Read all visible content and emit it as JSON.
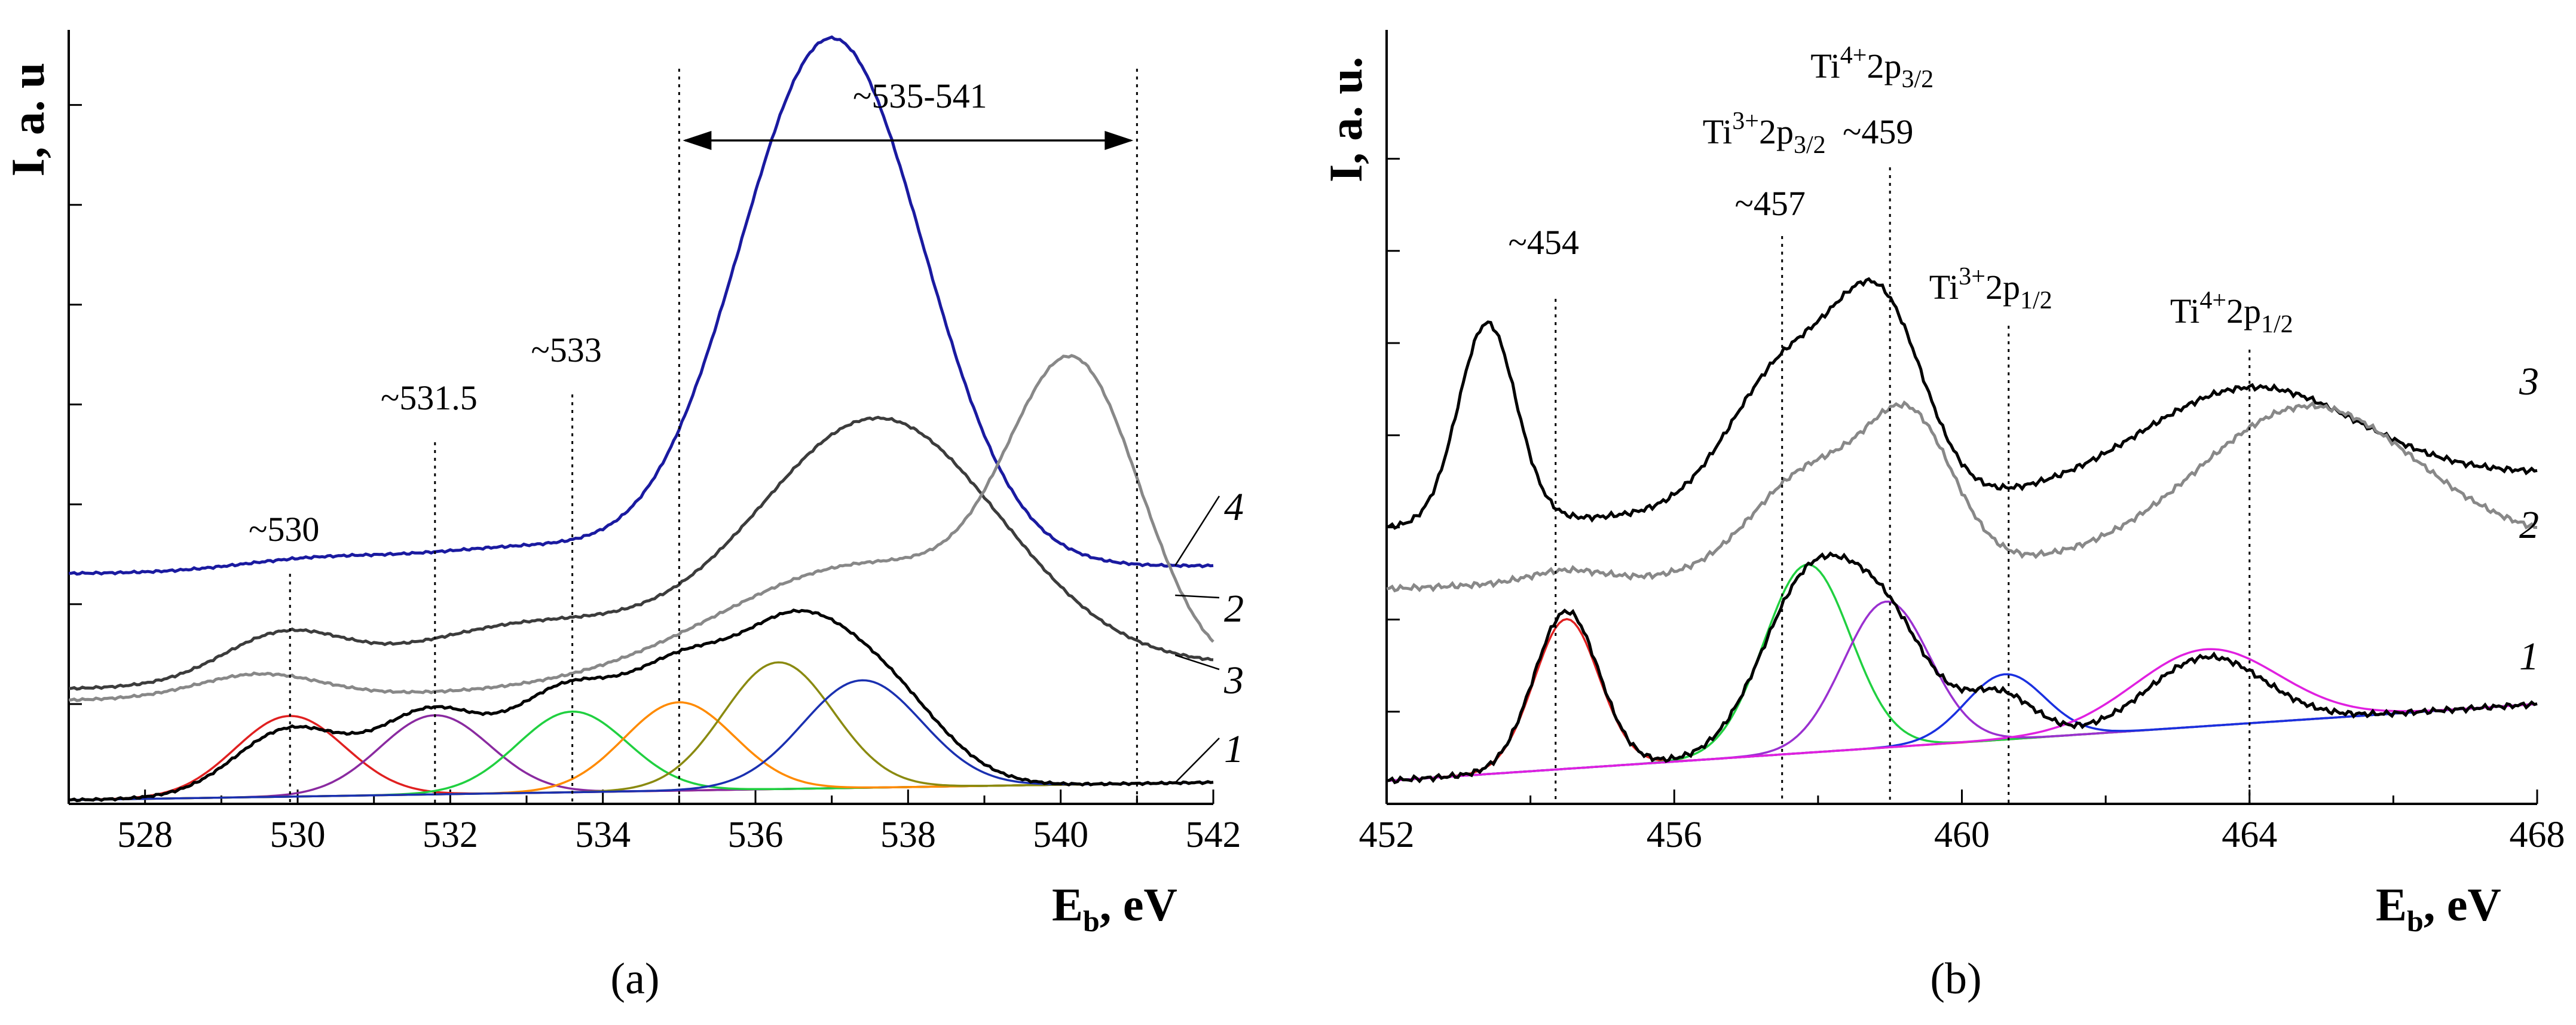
{
  "chart_data": [
    {
      "id": "a",
      "type": "line",
      "panel_label": "(a)",
      "xlabel_main": "E",
      "xlabel_sub": "b",
      "xlabel_rest": ", eV",
      "ylabel": "I, a. u",
      "xlim": [
        527,
        542
      ],
      "ylim": [
        0,
        1
      ],
      "x_ticks": [
        528,
        530,
        532,
        534,
        536,
        538,
        540,
        542
      ],
      "x_tick_labels": [
        "528",
        "530",
        "532",
        "534",
        "536",
        "538",
        "540",
        "542"
      ],
      "y_minor_ticks": [
        0.13,
        0.26,
        0.39,
        0.52,
        0.65,
        0.78,
        0.91
      ],
      "series": [
        {
          "name": "1",
          "color": "#000000",
          "baseline": [
            0.005,
            0.028
          ],
          "peaks": [
            [
              529.9,
              0.087,
              0.72
            ],
            [
              531.75,
              0.105,
              0.7
            ],
            [
              533.5,
              0.124,
              0.7
            ],
            [
              535.0,
              0.143,
              0.7
            ],
            [
              536.4,
              0.168,
              0.72
            ],
            [
              537.6,
              0.13,
              0.8
            ]
          ]
        },
        {
          "name": "4",
          "color": "#1a1aa0",
          "baseline": [
            0.3,
            0.31
          ],
          "peaks": [
            [
              530.2,
              0.015,
              1.0
            ],
            [
              533.0,
              0.03,
              1.4
            ],
            [
              537.0,
              0.69,
              1.2
            ]
          ]
        },
        {
          "name": "3",
          "color": "#3c3c3c",
          "baseline": [
            0.15,
            0.18
          ],
          "peaks": [
            [
              529.8,
              0.06,
              0.8
            ],
            [
              533.0,
              0.07,
              1.6
            ],
            [
              537.6,
              0.33,
              1.6
            ]
          ]
        },
        {
          "name": "2",
          "color": "#888888",
          "baseline": [
            0.135,
            0.16
          ],
          "peaks": [
            [
              529.5,
              0.03,
              0.8
            ],
            [
              537.5,
              0.16,
              2.0
            ],
            [
              540.2,
              0.36,
              0.85
            ]
          ]
        }
      ],
      "components": [
        {
          "color": "#e02020",
          "center": 529.9,
          "height": 0.105,
          "width": 0.72
        },
        {
          "color": "#8a2aa0",
          "center": 531.8,
          "height": 0.103,
          "width": 0.72
        },
        {
          "color": "#20d040",
          "center": 533.6,
          "height": 0.105,
          "width": 0.72
        },
        {
          "color": "#ff8a00",
          "center": 535.0,
          "height": 0.115,
          "width": 0.72
        },
        {
          "color": "#8a8a10",
          "center": 536.3,
          "height": 0.165,
          "width": 0.72
        },
        {
          "color": "#1a30b0",
          "center": 537.4,
          "height": 0.14,
          "width": 0.78
        }
      ],
      "markers": [
        {
          "x": 529.9,
          "label": "~530"
        },
        {
          "x": 531.8,
          "label": "~531.5"
        },
        {
          "x": 533.6,
          "label": "~533"
        }
      ],
      "range": {
        "x1": 535.0,
        "x2": 541.0,
        "label": "~535-541"
      },
      "curve_labels": [
        {
          "text": "4",
          "series": "4"
        },
        {
          "text": "2",
          "series": "2"
        },
        {
          "text": "3",
          "series": "3"
        },
        {
          "text": "1",
          "series": "1"
        }
      ]
    },
    {
      "id": "b",
      "type": "line",
      "panel_label": "(b)",
      "xlabel_main": "E",
      "xlabel_sub": "b",
      "xlabel_rest": ", eV",
      "ylabel": "I, a. u.",
      "xlim": [
        452,
        468
      ],
      "ylim": [
        0,
        1
      ],
      "x_ticks": [
        452,
        456,
        460,
        464,
        468
      ],
      "x_tick_labels": [
        "452",
        "456",
        "460",
        "464",
        "468"
      ],
      "y_minor_ticks": [
        0.12,
        0.24,
        0.36,
        0.48,
        0.6,
        0.72,
        0.84
      ],
      "series": [
        {
          "name": "1",
          "color": "#000000",
          "baseline": [
            0.03,
            0.13
          ],
          "peaks": [
            [
              454.5,
              0.205,
              0.45
            ],
            [
              457.85,
              0.215,
              0.65
            ],
            [
              458.95,
              0.15,
              0.6
            ],
            [
              460.5,
              0.06,
              0.5
            ],
            [
              463.4,
              0.09,
              0.8
            ]
          ]
        },
        {
          "name": "3",
          "color": "#000000",
          "baseline": [
            0.36,
            0.43
          ],
          "peaks": [
            [
              453.4,
              0.26,
              0.4
            ],
            [
              457.6,
              0.19,
              0.8
            ],
            [
              458.9,
              0.23,
              0.6
            ],
            [
              464.0,
              0.13,
              1.5
            ]
          ]
        },
        {
          "name": "2",
          "color": "#888888",
          "baseline": [
            0.28,
            0.34
          ],
          "peaks": [
            [
              454.5,
              0.015,
              0.5
            ],
            [
              457.9,
              0.13,
              0.8
            ],
            [
              459.3,
              0.18,
              0.6
            ],
            [
              464.8,
              0.19,
              1.5
            ]
          ]
        }
      ],
      "components": [
        {
          "color": "#e02020",
          "center": 454.5,
          "height": 0.195,
          "width": 0.45
        },
        {
          "color": "#20d040",
          "center": 457.85,
          "height": 0.245,
          "width": 0.6
        },
        {
          "color": "#9a30d0",
          "center": 458.95,
          "height": 0.19,
          "width": 0.6
        },
        {
          "color": "#1a30e0",
          "center": 460.6,
          "height": 0.085,
          "width": 0.55
        },
        {
          "color": "#e020e0",
          "center": 463.4,
          "height": 0.1,
          "width": 1.0
        }
      ],
      "markers": [
        {
          "x": 454.35,
          "label": "~454"
        },
        {
          "x": 457.5,
          "label": "~457",
          "ion": "Ti",
          "sup": "3+",
          "orb": "2p",
          "sub": "3/2"
        },
        {
          "x": 459.0,
          "label": "~459",
          "ion": "Ti",
          "sup": "4+",
          "orb": "2p",
          "sub": "3/2"
        },
        {
          "x": 460.65,
          "label": "",
          "ion": "Ti",
          "sup": "3+",
          "orb": "2p",
          "sub": "1/2"
        },
        {
          "x": 464.0,
          "label": "",
          "ion": "Ti",
          "sup": "4+",
          "orb": "2p",
          "sub": "1/2"
        }
      ],
      "curve_labels": [
        {
          "text": "3",
          "series": "3"
        },
        {
          "text": "2",
          "series": "2"
        },
        {
          "text": "1",
          "series": "1"
        }
      ]
    }
  ]
}
